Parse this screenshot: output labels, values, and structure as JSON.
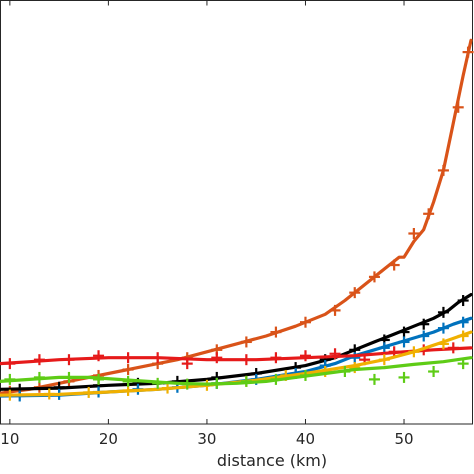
{
  "chart_data": {
    "type": "line",
    "title": "",
    "xlabel": "distance (km)",
    "ylabel": "",
    "xlim": [
      9,
      57
    ],
    "ylim": [
      0,
      1
    ],
    "xticks": [
      10,
      20,
      30,
      40,
      50
    ],
    "grid": false,
    "legend": "none",
    "series": [
      {
        "color": "#d95319",
        "line": [
          [
            9,
            0.035
          ],
          [
            12,
            0.045
          ],
          [
            15,
            0.06
          ],
          [
            18,
            0.075
          ],
          [
            21,
            0.09
          ],
          [
            24,
            0.105
          ],
          [
            27,
            0.12
          ],
          [
            30,
            0.14
          ],
          [
            33,
            0.16
          ],
          [
            36,
            0.18
          ],
          [
            39,
            0.205
          ],
          [
            42,
            0.235
          ],
          [
            44,
            0.27
          ],
          [
            46,
            0.31
          ],
          [
            48,
            0.35
          ],
          [
            49.5,
            0.38
          ],
          [
            50,
            0.38
          ],
          [
            51,
            0.42
          ],
          [
            52,
            0.45
          ],
          [
            53,
            0.52
          ],
          [
            54,
            0.6
          ],
          [
            55,
            0.72
          ],
          [
            56,
            0.84
          ],
          [
            56.8,
            0.93
          ]
        ],
        "markers": [
          [
            10,
            0.04
          ],
          [
            13,
            0.05
          ],
          [
            16,
            0.065
          ],
          [
            19,
            0.08
          ],
          [
            22,
            0.095
          ],
          [
            25,
            0.11
          ],
          [
            28,
            0.125
          ],
          [
            31,
            0.145
          ],
          [
            34,
            0.165
          ],
          [
            37,
            0.19
          ],
          [
            40,
            0.215
          ],
          [
            43,
            0.245
          ],
          [
            45,
            0.29
          ],
          [
            47,
            0.33
          ],
          [
            49,
            0.36
          ],
          [
            51,
            0.44
          ],
          [
            52.5,
            0.49
          ],
          [
            54,
            0.6
          ],
          [
            55.5,
            0.76
          ],
          [
            56.5,
            0.9
          ]
        ]
      },
      {
        "color": "#000000",
        "line": [
          [
            9,
            0.045
          ],
          [
            15,
            0.048
          ],
          [
            20,
            0.055
          ],
          [
            25,
            0.06
          ],
          [
            30,
            0.07
          ],
          [
            35,
            0.085
          ],
          [
            40,
            0.105
          ],
          [
            43,
            0.125
          ],
          [
            45,
            0.145
          ],
          [
            47,
            0.165
          ],
          [
            49,
            0.185
          ],
          [
            51,
            0.205
          ],
          [
            53,
            0.225
          ],
          [
            54.5,
            0.245
          ],
          [
            55.5,
            0.265
          ],
          [
            56.8,
            0.285
          ]
        ],
        "markers": [
          [
            11,
            0.045
          ],
          [
            15,
            0.05
          ],
          [
            19,
            0.055
          ],
          [
            23,
            0.06
          ],
          [
            27,
            0.065
          ],
          [
            31,
            0.075
          ],
          [
            35,
            0.085
          ],
          [
            39,
            0.1
          ],
          [
            42,
            0.12
          ],
          [
            45,
            0.145
          ],
          [
            48,
            0.17
          ],
          [
            50,
            0.19
          ],
          [
            52,
            0.21
          ],
          [
            54,
            0.24
          ],
          [
            56,
            0.27
          ]
        ]
      },
      {
        "color": "#0072bd",
        "line": [
          [
            9,
            0.028
          ],
          [
            15,
            0.03
          ],
          [
            20,
            0.038
          ],
          [
            25,
            0.045
          ],
          [
            30,
            0.055
          ],
          [
            35,
            0.07
          ],
          [
            40,
            0.09
          ],
          [
            43,
            0.11
          ],
          [
            45,
            0.13
          ],
          [
            47,
            0.145
          ],
          [
            49,
            0.16
          ],
          [
            51,
            0.175
          ],
          [
            53,
            0.19
          ],
          [
            55,
            0.21
          ],
          [
            56.8,
            0.225
          ]
        ],
        "markers": [
          [
            11,
            0.028
          ],
          [
            15,
            0.032
          ],
          [
            19,
            0.038
          ],
          [
            23,
            0.045
          ],
          [
            27,
            0.05
          ],
          [
            31,
            0.06
          ],
          [
            35,
            0.07
          ],
          [
            39,
            0.085
          ],
          [
            42,
            0.105
          ],
          [
            45,
            0.125
          ],
          [
            48,
            0.15
          ],
          [
            50,
            0.165
          ],
          [
            52,
            0.18
          ],
          [
            54,
            0.2
          ],
          [
            56,
            0.215
          ]
        ]
      },
      {
        "color": "#e61a1a",
        "line": [
          [
            9,
            0.11
          ],
          [
            12,
            0.115
          ],
          [
            15,
            0.12
          ],
          [
            20,
            0.125
          ],
          [
            25,
            0.125
          ],
          [
            30,
            0.12
          ],
          [
            35,
            0.12
          ],
          [
            40,
            0.125
          ],
          [
            45,
            0.13
          ],
          [
            50,
            0.14
          ],
          [
            53,
            0.145
          ],
          [
            56.8,
            0.15
          ]
        ],
        "markers": [
          [
            10,
            0.11
          ],
          [
            13,
            0.12
          ],
          [
            16,
            0.12
          ],
          [
            19,
            0.13
          ],
          [
            22,
            0.125
          ],
          [
            25,
            0.125
          ],
          [
            28,
            0.11
          ],
          [
            31,
            0.125
          ],
          [
            34,
            0.12
          ],
          [
            37,
            0.125
          ],
          [
            40,
            0.13
          ],
          [
            43,
            0.135
          ],
          [
            46,
            0.12
          ],
          [
            49,
            0.14
          ],
          [
            52,
            0.145
          ],
          [
            55,
            0.15
          ]
        ]
      },
      {
        "color": "#f0b000",
        "line": [
          [
            9,
            0.03
          ],
          [
            15,
            0.032
          ],
          [
            20,
            0.038
          ],
          [
            25,
            0.045
          ],
          [
            30,
            0.055
          ],
          [
            35,
            0.068
          ],
          [
            40,
            0.085
          ],
          [
            45,
            0.105
          ],
          [
            48,
            0.12
          ],
          [
            51,
            0.14
          ],
          [
            54,
            0.165
          ],
          [
            56.8,
            0.19
          ]
        ],
        "markers": [
          [
            10,
            0.03
          ],
          [
            14,
            0.033
          ],
          [
            18,
            0.037
          ],
          [
            22,
            0.042
          ],
          [
            26,
            0.048
          ],
          [
            30,
            0.055
          ],
          [
            34,
            0.065
          ],
          [
            38,
            0.08
          ],
          [
            42,
            0.09
          ],
          [
            45,
            0.1
          ],
          [
            48,
            0.12
          ],
          [
            51,
            0.14
          ],
          [
            54,
            0.16
          ],
          [
            56,
            0.18
          ]
        ]
      },
      {
        "color": "#5ecc16",
        "line": [
          [
            9,
            0.065
          ],
          [
            12,
            0.07
          ],
          [
            15,
            0.075
          ],
          [
            18,
            0.075
          ],
          [
            21,
            0.07
          ],
          [
            24,
            0.065
          ],
          [
            27,
            0.06
          ],
          [
            30,
            0.058
          ],
          [
            33,
            0.06
          ],
          [
            36,
            0.065
          ],
          [
            39,
            0.075
          ],
          [
            42,
            0.085
          ],
          [
            45,
            0.095
          ],
          [
            48,
            0.1
          ],
          [
            51,
            0.108
          ],
          [
            54,
            0.115
          ],
          [
            56.8,
            0.125
          ]
        ],
        "markers": [
          [
            10,
            0.07
          ],
          [
            13,
            0.075
          ],
          [
            16,
            0.075
          ],
          [
            19,
            0.07
          ],
          [
            22,
            0.065
          ],
          [
            25,
            0.06
          ],
          [
            28,
            0.058
          ],
          [
            31,
            0.06
          ],
          [
            34,
            0.065
          ],
          [
            37,
            0.07
          ],
          [
            40,
            0.08
          ],
          [
            44,
            0.09
          ],
          [
            47,
            0.07
          ],
          [
            50,
            0.075
          ],
          [
            53,
            0.09
          ],
          [
            56,
            0.11
          ]
        ]
      }
    ]
  }
}
